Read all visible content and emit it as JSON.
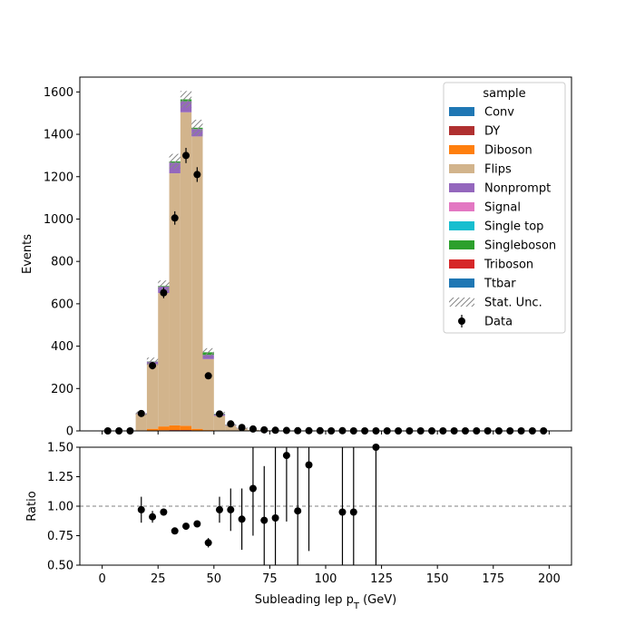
{
  "chart_data": {
    "type": "bar",
    "title": "",
    "xlabel": "Subleading lep p",
    "xlabel_sub": "T",
    "xlabel_unit": " (GeV)",
    "ylabel": "Events",
    "ratio_ylabel": "Ratio",
    "xlim": [
      -10,
      210
    ],
    "ylim": [
      0,
      1670
    ],
    "ratio_ylim": [
      0.5,
      1.5
    ],
    "x_ticks": [
      "0",
      "25",
      "50",
      "75",
      "100",
      "125",
      "150",
      "175",
      "200"
    ],
    "y_ticks": [
      "0",
      "200",
      "400",
      "600",
      "800",
      "1000",
      "1200",
      "1400",
      "1600"
    ],
    "ratio_y_ticks": [
      "0.50",
      "0.75",
      "1.00",
      "1.25",
      "1.50"
    ],
    "bin_width": 5,
    "bin_edges_start": 0,
    "legend_title": "sample",
    "legend_position": "top-right",
    "series": [
      {
        "name": "Conv",
        "color": "#1f77b4",
        "values": [
          0,
          0,
          0,
          0,
          0,
          0,
          0,
          0,
          0,
          0,
          0,
          0,
          0,
          0,
          0,
          0,
          0,
          0,
          0,
          0,
          0,
          0,
          0,
          0,
          0,
          0,
          0,
          0,
          0,
          0,
          0,
          0,
          0,
          0,
          0,
          0,
          0,
          0,
          0,
          0
        ]
      },
      {
        "name": "DY",
        "color": "#b03030",
        "values": [
          0,
          0,
          0,
          1,
          2,
          3,
          4,
          4,
          2,
          1,
          0,
          0,
          0,
          0,
          0,
          0,
          0,
          0,
          0,
          0,
          0,
          0,
          0,
          0,
          0,
          0,
          0,
          0,
          0,
          0,
          0,
          0,
          0,
          0,
          0,
          0,
          0,
          0,
          0,
          0
        ]
      },
      {
        "name": "Diboson",
        "color": "#ff7f0e",
        "values": [
          0,
          0,
          0,
          2,
          8,
          18,
          22,
          20,
          8,
          3,
          1,
          0,
          0,
          0,
          0,
          0,
          0,
          0,
          0,
          0,
          0,
          0,
          0,
          0,
          0,
          0,
          0,
          0,
          0,
          0,
          0,
          0,
          0,
          0,
          0,
          0,
          0,
          0,
          0,
          0
        ]
      },
      {
        "name": "Flips",
        "color": "#d2b48c",
        "values": [
          0,
          0,
          0,
          77,
          305,
          630,
          1190,
          1480,
          1380,
          335,
          70,
          25,
          12,
          5,
          3,
          2,
          1,
          1,
          0,
          0,
          0,
          0,
          0,
          0,
          0,
          0,
          0,
          0,
          0,
          0,
          0,
          0,
          0,
          0,
          0,
          0,
          0,
          0,
          0,
          0
        ]
      },
      {
        "name": "Nonprompt",
        "color": "#9467bd",
        "values": [
          0,
          0,
          0,
          3,
          12,
          30,
          50,
          52,
          35,
          20,
          8,
          3,
          1,
          0,
          0,
          0,
          0,
          0,
          0,
          0,
          0,
          0,
          0,
          0,
          0,
          0,
          0,
          0,
          0,
          0,
          0,
          0,
          0,
          0,
          0,
          0,
          0,
          0,
          0,
          0
        ]
      },
      {
        "name": "Signal",
        "color": "#e377c2",
        "values": [
          0,
          0,
          0,
          0,
          0,
          0,
          0,
          0,
          0,
          0,
          0,
          0,
          0,
          0,
          0,
          0,
          0,
          0,
          0,
          0,
          0,
          0,
          0,
          0,
          0,
          0,
          0,
          0,
          0,
          0,
          0,
          0,
          0,
          0,
          0,
          0,
          0,
          0,
          0,
          0
        ]
      },
      {
        "name": "Single top",
        "color": "#17becf",
        "values": [
          0,
          0,
          0,
          0,
          0,
          0,
          0,
          0,
          0,
          0,
          0,
          0,
          0,
          0,
          0,
          0,
          0,
          0,
          0,
          0,
          0,
          0,
          0,
          0,
          0,
          0,
          0,
          0,
          0,
          0,
          0,
          0,
          0,
          0,
          0,
          0,
          0,
          0,
          0,
          0
        ]
      },
      {
        "name": "Singleboson",
        "color": "#2ca02c",
        "values": [
          0,
          0,
          0,
          0,
          1,
          3,
          6,
          9,
          6,
          12,
          2,
          1,
          0,
          0,
          0,
          0,
          0,
          0,
          0,
          0,
          0,
          0,
          0,
          0,
          0,
          0,
          0,
          0,
          0,
          0,
          0,
          0,
          0,
          0,
          0,
          0,
          0,
          0,
          0,
          0
        ]
      },
      {
        "name": "Triboson",
        "color": "#d62728",
        "values": [
          0,
          0,
          0,
          0,
          0,
          0,
          0,
          0,
          0,
          0,
          0,
          0,
          0,
          0,
          0,
          0,
          0,
          0,
          0,
          0,
          0,
          0,
          0,
          0,
          0,
          0,
          0,
          0,
          0,
          0,
          0,
          0,
          0,
          0,
          0,
          0,
          0,
          0,
          0,
          0
        ]
      },
      {
        "name": "Ttbar",
        "color": "#1f77b4",
        "values": [
          0,
          0,
          0,
          0,
          0,
          0,
          0,
          0,
          0,
          0,
          0,
          0,
          0,
          0,
          0,
          0,
          0,
          0,
          0,
          0,
          0,
          0,
          0,
          0,
          0,
          0,
          0,
          0,
          0,
          0,
          0,
          0,
          0,
          0,
          0,
          0,
          0,
          0,
          0,
          0
        ]
      }
    ],
    "stat_unc_label": "Stat. Unc.",
    "data": {
      "name": "Data",
      "values": [
        0,
        0,
        0,
        82,
        308,
        652,
        1005,
        1300,
        1210,
        260,
        80,
        33,
        16,
        9,
        5,
        3,
        2,
        1,
        1,
        1,
        0,
        1,
        0,
        0,
        0,
        0,
        0,
        0,
        0,
        0,
        0,
        0,
        0,
        0,
        0,
        0,
        0,
        0,
        0,
        0
      ],
      "errors": [
        0,
        0,
        0,
        9,
        17.5,
        25.5,
        31.7,
        36,
        34.8,
        16,
        8.9,
        5.7,
        4,
        3,
        2.2,
        1.7,
        1.4,
        1,
        1,
        1,
        0,
        1,
        0,
        0,
        0,
        0,
        0,
        0,
        0,
        0,
        0,
        0,
        0,
        0,
        0,
        0,
        0,
        0,
        0,
        0
      ]
    },
    "ratio": {
      "x": [
        17.5,
        22.5,
        27.5,
        32.5,
        37.5,
        42.5,
        47.5,
        52.5,
        57.5,
        62.5,
        67.5,
        72.5,
        77.5,
        82.5,
        87.5,
        92.5,
        107.5,
        112.5,
        122.5
      ],
      "y": [
        0.97,
        0.91,
        0.95,
        0.79,
        0.83,
        0.85,
        0.69,
        0.97,
        0.97,
        0.89,
        1.15,
        0.88,
        0.9,
        1.43,
        0.96,
        1.35,
        0.95,
        0.95,
        1.5
      ],
      "err": [
        0.11,
        0.05,
        0.03,
        0.02,
        0.02,
        0.02,
        0.04,
        0.11,
        0.18,
        0.26,
        0.4,
        0.46,
        0.6,
        0.56,
        0.96,
        0.73,
        1.5,
        1.5,
        1.5
      ]
    },
    "ratio_reference": 1.0
  }
}
